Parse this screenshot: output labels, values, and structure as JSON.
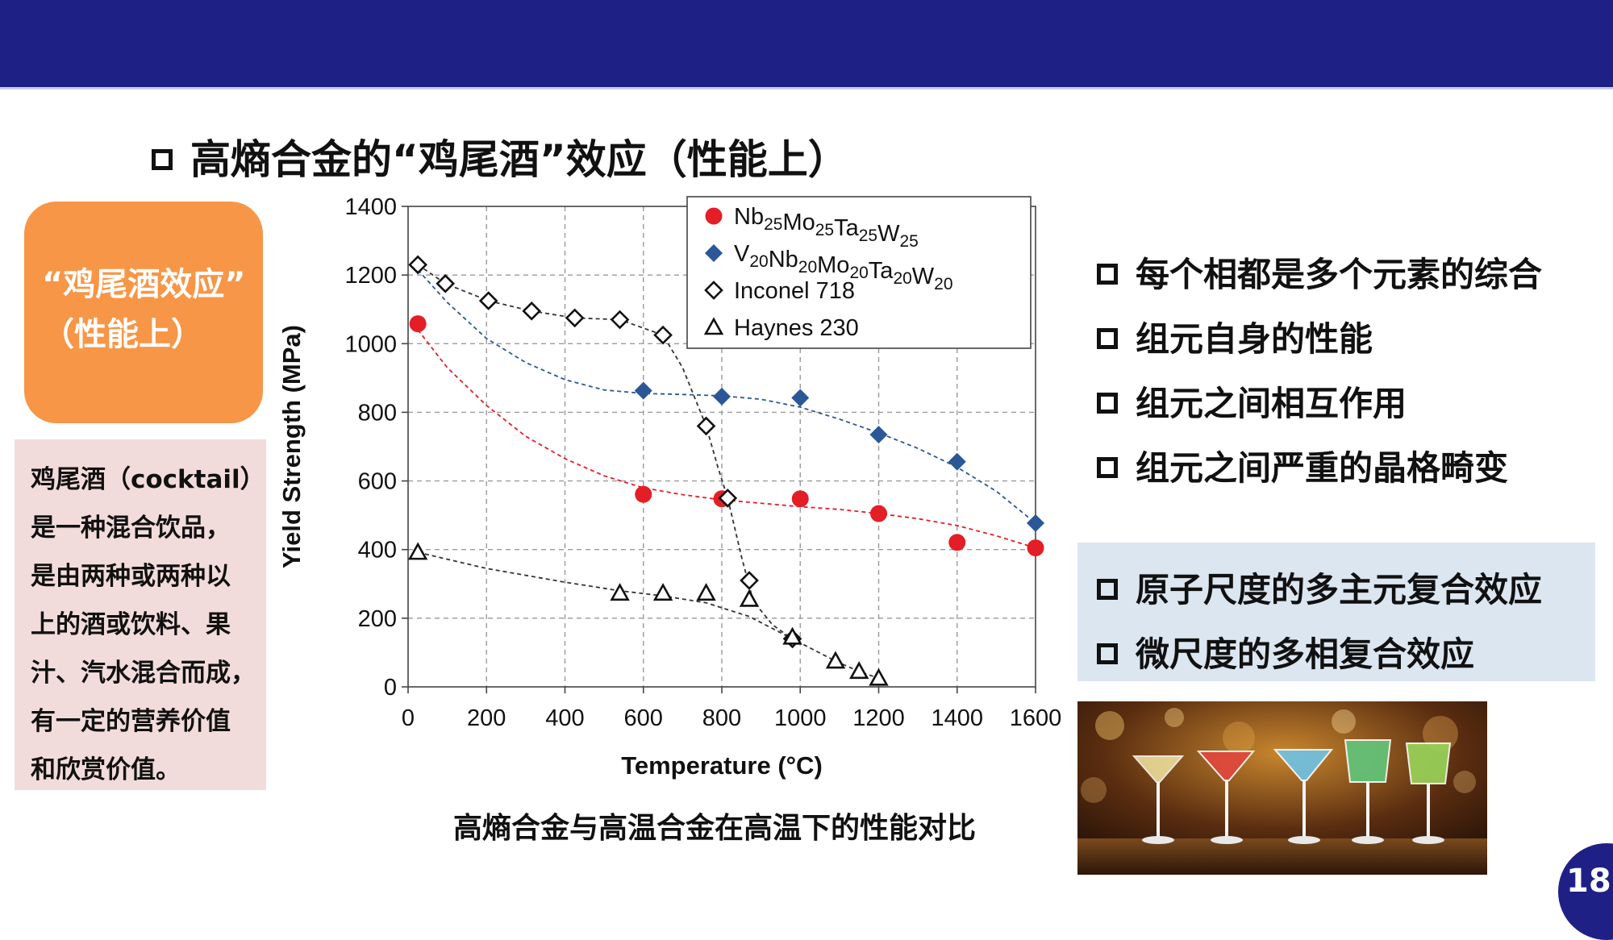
{
  "slide": {
    "title": "高熵合金的“鸡尾酒”效应（性能上）",
    "page_number": "18"
  },
  "left_panel": {
    "highlight_line1": "“鸡尾酒效应”",
    "highlight_line2": "（性能上）",
    "definition_lines": [
      "鸡尾酒（cocktail）",
      "是一种混合饮品，",
      "是由两种或两种以",
      "上的酒或饮料、果",
      "汁、汽水混合而成，",
      "有一定的营养价值",
      "和欣赏价值。"
    ]
  },
  "chart_caption": "高熵合金与高温合金在高温下的性能对比",
  "chart_data": {
    "type": "scatter",
    "xlabel": "Temperature (°C)",
    "ylabel": "Yield Strength (MPa)",
    "xlim": [
      0,
      1600
    ],
    "ylim": [
      0,
      1400
    ],
    "x_ticks": [
      "0",
      "200",
      "400",
      "600",
      "800",
      "1000",
      "1200",
      "1400",
      "1600"
    ],
    "y_ticks": [
      "0",
      "200",
      "400",
      "600",
      "800",
      "1000",
      "1200",
      "1400"
    ],
    "grid": true,
    "legend_position": "top-right",
    "series": [
      {
        "name": "Nb25Mo25Ta25W25",
        "marker": "circle",
        "color": "#e41e26",
        "trend_color": "#e41e26",
        "x": [
          25,
          600,
          800,
          1000,
          1200,
          1400,
          1600
        ],
        "y": [
          1058,
          561,
          548,
          548,
          505,
          421,
          405
        ],
        "trend_x": [
          25,
          100,
          200,
          300,
          400,
          500,
          600,
          700,
          800,
          900,
          1000,
          1100,
          1200,
          1300,
          1400,
          1500,
          1600
        ],
        "trend_y": [
          1040,
          930,
          820,
          730,
          665,
          615,
          580,
          560,
          545,
          535,
          525,
          517,
          505,
          490,
          470,
          440,
          405
        ]
      },
      {
        "name": "V20Nb20Mo20Ta20W20",
        "marker": "diamond",
        "color": "#2b5797",
        "trend_color": "#2b5797",
        "x": [
          25,
          600,
          800,
          1000,
          1200,
          1400,
          1600
        ],
        "y": [
          1228,
          863,
          846,
          842,
          735,
          656,
          477
        ],
        "trend_x": [
          25,
          100,
          200,
          300,
          400,
          500,
          600,
          700,
          800,
          900,
          1000,
          1100,
          1200,
          1300,
          1400,
          1500,
          1600
        ],
        "trend_y": [
          1215,
          1120,
          1015,
          945,
          895,
          865,
          855,
          852,
          848,
          838,
          815,
          780,
          740,
          695,
          640,
          570,
          477
        ]
      },
      {
        "name": "Inconel718",
        "marker": "open-diamond",
        "color": "#111111",
        "trend_color": "#333333",
        "x": [
          25,
          95,
          205,
          315,
          425,
          540,
          650,
          760,
          815,
          870,
          980
        ],
        "y": [
          1230,
          1175,
          1125,
          1095,
          1075,
          1070,
          1025,
          760,
          550,
          310,
          140
        ],
        "trend_x": [
          25,
          95,
          205,
          315,
          425,
          540,
          650,
          700,
          760,
          790,
          815,
          850,
          880,
          930,
          980
        ],
        "trend_y": [
          1230,
          1175,
          1125,
          1095,
          1075,
          1070,
          1025,
          930,
          760,
          640,
          550,
          380,
          250,
          180,
          140
        ]
      },
      {
        "name": "Haynes230",
        "marker": "open-triangle",
        "color": "#111111",
        "trend_color": "#333333",
        "x": [
          25,
          540,
          650,
          760,
          870,
          980,
          1090,
          1150,
          1200
        ],
        "y": [
          392,
          273,
          273,
          273,
          255,
          145,
          75,
          45,
          25
        ],
        "trend_x": [
          25,
          200,
          400,
          540,
          650,
          760,
          870,
          980,
          1090,
          1150,
          1200
        ],
        "trend_y": [
          392,
          345,
          305,
          280,
          265,
          245,
          205,
          140,
          75,
          45,
          25
        ]
      }
    ],
    "legend_labels": [
      {
        "base": "Nb",
        "sub": "25"
      },
      {
        "base": "Mo",
        "sub": "25"
      },
      {
        "base": "Ta",
        "sub": "25"
      },
      {
        "base": "W",
        "sub": "25"
      }
    ]
  },
  "legend_formula_2": [
    {
      "base": "V",
      "sub": "20"
    },
    {
      "base": "Nb",
      "sub": "20"
    },
    {
      "base": "Mo",
      "sub": "20"
    },
    {
      "base": "Ta",
      "sub": "20"
    },
    {
      "base": "W",
      "sub": "20"
    }
  ],
  "legend_text": [
    "Inconel 718",
    "Haynes 230"
  ],
  "right_bullets": [
    "每个相都是多个元素的综合",
    "组元自身的性能",
    "组元之间相互作用",
    "组元之间严重的晶格畸变"
  ],
  "highlight_bullets": [
    "原子尺度的多主元复合效应",
    "微尺度的多相复合效应"
  ],
  "colors": {
    "header_band": "#1f2086",
    "orange_box": "#f79646",
    "pink_box": "#f2dcdb",
    "blue_box": "#dce6f1",
    "series_red": "#e41e26",
    "series_blue": "#2b5797"
  },
  "photo_icon": "cocktail-glasses-image"
}
